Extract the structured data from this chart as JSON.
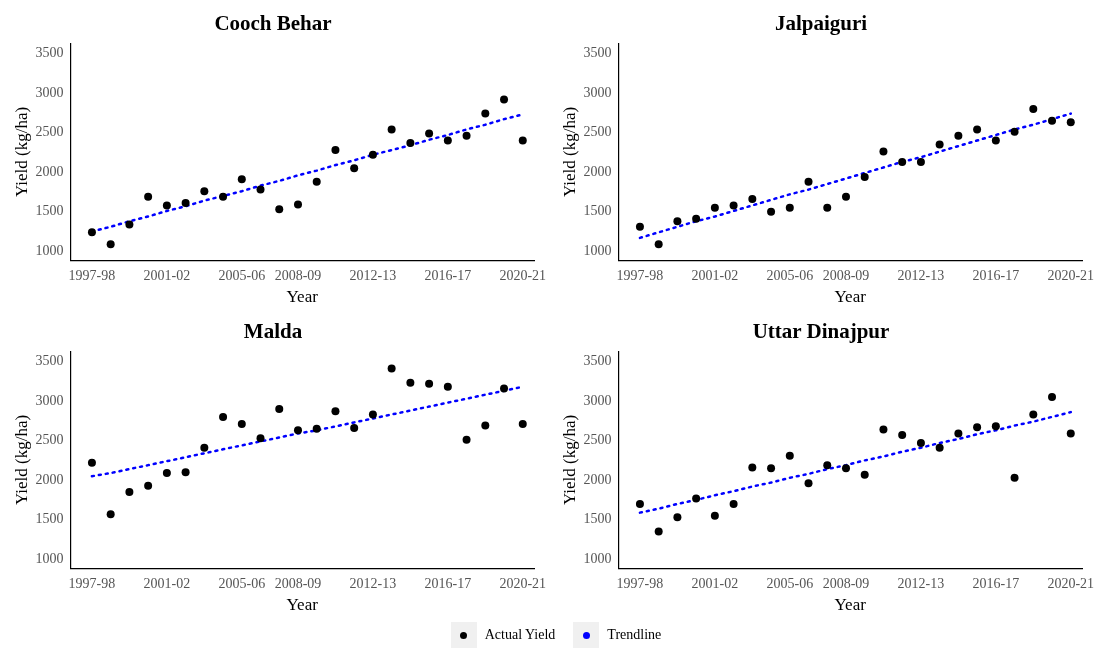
{
  "chart_data": [
    {
      "type": "scatter",
      "title": "Cooch Behar",
      "xlabel": "Year",
      "ylabel": "Yield (kg/ha)",
      "categories": [
        "1997-98",
        null,
        null,
        null,
        "2001-02",
        null,
        null,
        null,
        "2005-06",
        null,
        null,
        "2008-09",
        null,
        null,
        null,
        "2012-13",
        null,
        null,
        null,
        "2016-17",
        null,
        null,
        null,
        "2020-21"
      ],
      "ylim": [
        880,
        3630
      ],
      "yticks": [
        1000,
        1500,
        2000,
        2500,
        3000,
        3500
      ],
      "legend": "bottom",
      "series": [
        {
          "name": "Actual Yield",
          "marker": "circle",
          "color": "#000000",
          "values": [
            1240,
            1090,
            1340,
            1690,
            1580,
            1610,
            1760,
            1690,
            1910,
            1780,
            1530,
            1590,
            1880,
            2280,
            2050,
            2220,
            2540,
            2370,
            2490,
            2400,
            2460,
            2740,
            2920,
            2400
          ]
        },
        {
          "name": "Trendline",
          "type": "line",
          "marker": "none",
          "line_style": "dotted",
          "color": "#0000ff",
          "values": [
            1250,
            1310,
            1380,
            1440,
            1510,
            1570,
            1640,
            1700,
            1760,
            1830,
            1890,
            1960,
            2020,
            2090,
            2150,
            2220,
            2280,
            2340,
            2410,
            2470,
            2540,
            2600,
            2670,
            2730
          ]
        }
      ]
    },
    {
      "type": "scatter",
      "title": "Jalpaiguri",
      "xlabel": "Year",
      "ylabel": "Yield (kg/ha)",
      "categories": [
        "1997-98",
        null,
        null,
        null,
        "2001-02",
        null,
        null,
        null,
        "2005-06",
        null,
        null,
        "2008-09",
        null,
        null,
        null,
        "2012-13",
        null,
        null,
        null,
        "2016-17",
        null,
        null,
        null,
        "2020-21"
      ],
      "ylim": [
        880,
        3630
      ],
      "yticks": [
        1000,
        1500,
        2000,
        2500,
        3000,
        3500
      ],
      "series": [
        {
          "marker": "circle",
          "color": "#000000",
          "values": [
            1310,
            1090,
            1380,
            1410,
            1550,
            1580,
            1660,
            1500,
            1550,
            1880,
            1550,
            1690,
            1940,
            2260,
            2130,
            2130,
            2350,
            2460,
            2540,
            2400,
            2510,
            2800,
            2650,
            2630
          ]
        },
        {
          "type": "line",
          "marker": "none",
          "line_style": "dotted",
          "color": "#0000ff",
          "values": [
            1170,
            1240,
            1310,
            1380,
            1440,
            1510,
            1580,
            1650,
            1720,
            1780,
            1850,
            1920,
            1990,
            2060,
            2130,
            2190,
            2260,
            2330,
            2400,
            2470,
            2540,
            2600,
            2670,
            2740
          ]
        }
      ]
    },
    {
      "type": "scatter",
      "title": "Malda",
      "xlabel": "Year",
      "ylabel": "Yield (kg/ha)",
      "categories": [
        "1997-98",
        null,
        null,
        null,
        "2001-02",
        null,
        null,
        null,
        "2005-06",
        null,
        null,
        "2008-09",
        null,
        null,
        null,
        "2012-13",
        null,
        null,
        null,
        "2016-17",
        null,
        null,
        null,
        "2020-21"
      ],
      "ylim": [
        880,
        3630
      ],
      "yticks": [
        1000,
        1500,
        2000,
        2500,
        3000,
        3500
      ],
      "series": [
        {
          "marker": "circle",
          "color": "#000000",
          "values": [
            2220,
            1570,
            1850,
            1930,
            2090,
            2100,
            2410,
            2800,
            2710,
            2530,
            2900,
            2630,
            2650,
            2870,
            2660,
            2830,
            3410,
            3230,
            3220,
            3180,
            2510,
            2690,
            3160,
            2710
          ]
        },
        {
          "type": "line",
          "marker": "none",
          "line_style": "dotted",
          "color": "#0000ff",
          "values": [
            2050,
            2090,
            2140,
            2190,
            2240,
            2290,
            2340,
            2390,
            2440,
            2490,
            2540,
            2590,
            2630,
            2680,
            2730,
            2780,
            2830,
            2880,
            2930,
            2980,
            3030,
            3080,
            3130,
            3180
          ]
        }
      ]
    },
    {
      "type": "scatter",
      "title": "Uttar Dinajpur",
      "xlabel": "Year",
      "ylabel": "Yield (kg/ha)",
      "categories": [
        "1997-98",
        null,
        null,
        null,
        "2001-02",
        null,
        null,
        null,
        "2005-06",
        null,
        null,
        "2008-09",
        null,
        null,
        null,
        "2012-13",
        null,
        null,
        null,
        "2016-17",
        null,
        null,
        null,
        "2020-21"
      ],
      "ylim": [
        880,
        3630
      ],
      "yticks": [
        1000,
        1500,
        2000,
        2500,
        3000,
        3500
      ],
      "series": [
        {
          "marker": "circle",
          "color": "#000000",
          "values": [
            1700,
            1350,
            1530,
            1770,
            1550,
            1700,
            2160,
            2150,
            2310,
            1960,
            2190,
            2150,
            2070,
            2640,
            2570,
            2470,
            2410,
            2590,
            2670,
            2680,
            2030,
            2830,
            3050,
            2590
          ]
        },
        {
          "type": "line",
          "marker": "none",
          "line_style": "dotted",
          "color": "#0000ff",
          "values": [
            1590,
            1640,
            1700,
            1750,
            1810,
            1860,
            1920,
            1970,
            2030,
            2080,
            2140,
            2190,
            2250,
            2300,
            2360,
            2410,
            2470,
            2520,
            2580,
            2630,
            2690,
            2740,
            2800,
            2860
          ]
        }
      ]
    }
  ]
}
